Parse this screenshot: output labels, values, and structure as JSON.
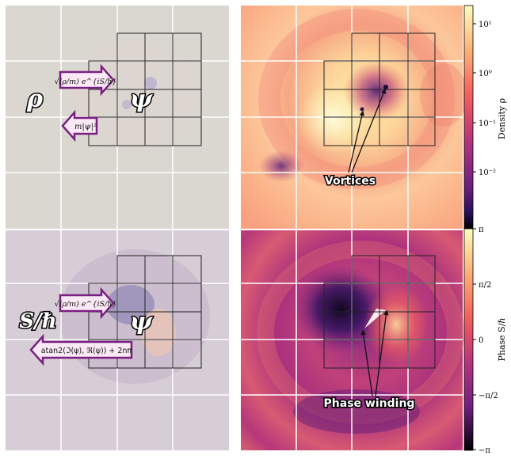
{
  "panels": {
    "density_symbol": "ρ",
    "phase_symbol": "S/ℏ",
    "wavefunction_symbol": "ψ"
  },
  "arrows": {
    "top_right_label": "√(ρ/m) e^{iS/ℏ}",
    "top_left_label": "m|ψ|²",
    "bottom_right_label": "√(ρ/m) e^{iS/ℏ}",
    "bottom_left_label": "atan2(ℑ(ψ), ℜ(ψ)) + 2nπ"
  },
  "annotations": {
    "vortices": "Vortices",
    "phase_winding": "Phase winding"
  },
  "colorbars": {
    "density": {
      "label": "Density ρ",
      "scale": "log",
      "ticks": [
        "10¹",
        "10⁰",
        "10⁻¹",
        "10⁻²"
      ]
    },
    "phase": {
      "label": "Phase S/ℏ",
      "ticks": [
        "π",
        "π/2",
        "0",
        "−π/2",
        "−π"
      ]
    }
  },
  "colors": {
    "arrow_fill": "#fbeaf6",
    "arrow_stroke": "#7a1f82",
    "grid_line": "#ffffff",
    "mesh_line": "#222222"
  }
}
